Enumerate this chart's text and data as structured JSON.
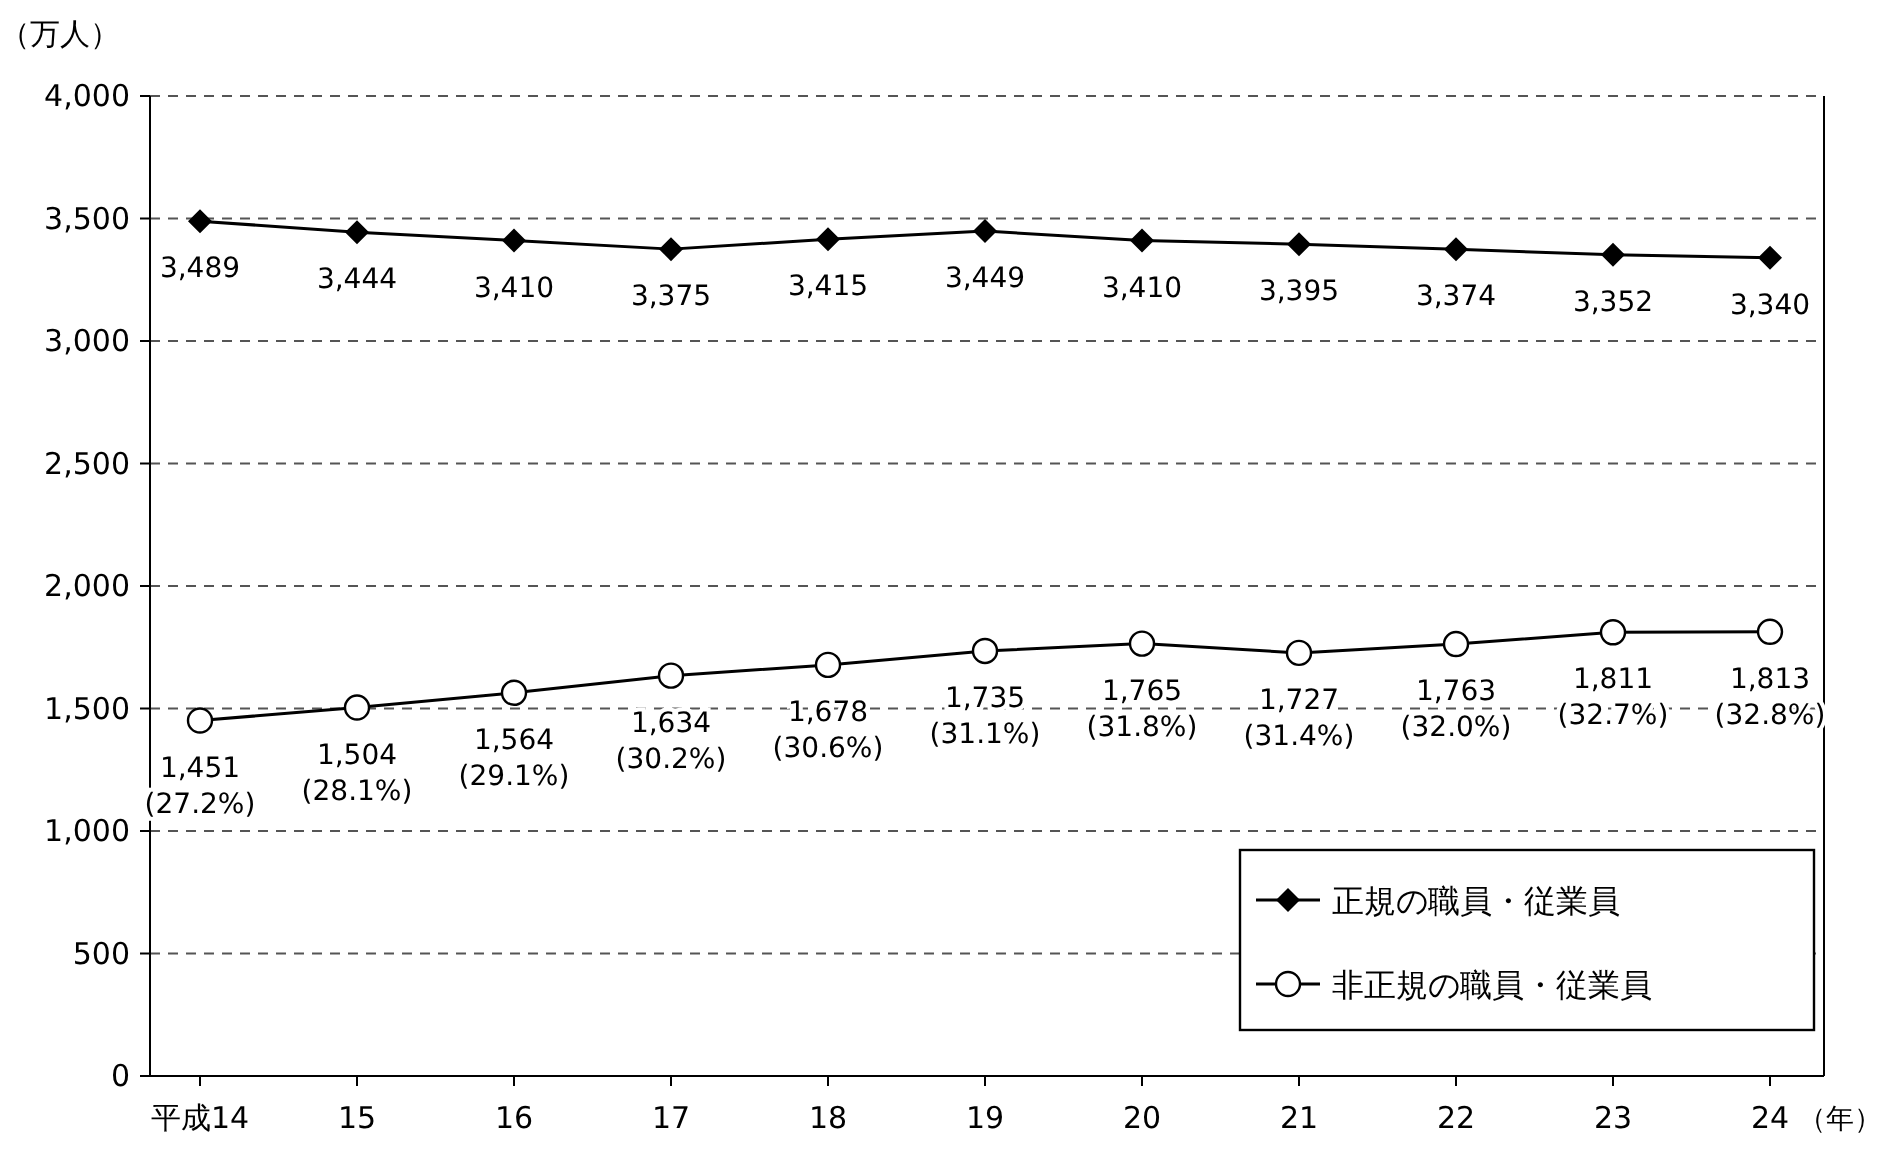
{
  "chart_data": {
    "type": "line",
    "xlabel": "（年）",
    "ylabel": "（万人）",
    "categories": [
      "平成14",
      "15",
      "16",
      "17",
      "18",
      "19",
      "20",
      "21",
      "22",
      "23",
      "24"
    ],
    "series": [
      {
        "name": "正規の職員・従業員",
        "color": "#000000",
        "marker": "diamond",
        "values": [
          3489,
          3444,
          3410,
          3375,
          3415,
          3449,
          3410,
          3395,
          3374,
          3352,
          3340
        ],
        "value_labels": [
          "3,489",
          "3,444",
          "3,410",
          "3,375",
          "3,415",
          "3,449",
          "3,410",
          "3,395",
          "3,374",
          "3,352",
          "3,340"
        ]
      },
      {
        "name": "非正規の職員・従業員",
        "color": "#000000",
        "marker": "circle",
        "values": [
          1451,
          1504,
          1564,
          1634,
          1678,
          1735,
          1765,
          1727,
          1763,
          1811,
          1813
        ],
        "value_labels": [
          "1,451\n(27.2%)",
          "1,504\n(28.1%)",
          "1,564\n(29.1%)",
          "1,634\n(30.2%)",
          "1,678\n(30.6%)",
          "1,735\n(31.1%)",
          "1,765\n(31.8%)",
          "1,727\n(31.4%)",
          "1,763\n(32.0%)",
          "1,811\n(32.7%)",
          "1,813\n(32.8%)"
        ]
      }
    ],
    "ylim": [
      0,
      4000
    ],
    "yticks": [
      0,
      500,
      {
        "value": 1000,
        "label": "1,000"
      },
      {
        "value": 1500,
        "label": "1,500"
      },
      {
        "value": 2000,
        "label": "2,000"
      },
      {
        "value": 2500,
        "label": "2,500"
      },
      {
        "value": 3000,
        "label": "3,000"
      },
      {
        "value": 3500,
        "label": "3,500"
      },
      {
        "value": 4000,
        "label": "4,000"
      }
    ],
    "grid": "y",
    "legend": "bottom right"
  }
}
